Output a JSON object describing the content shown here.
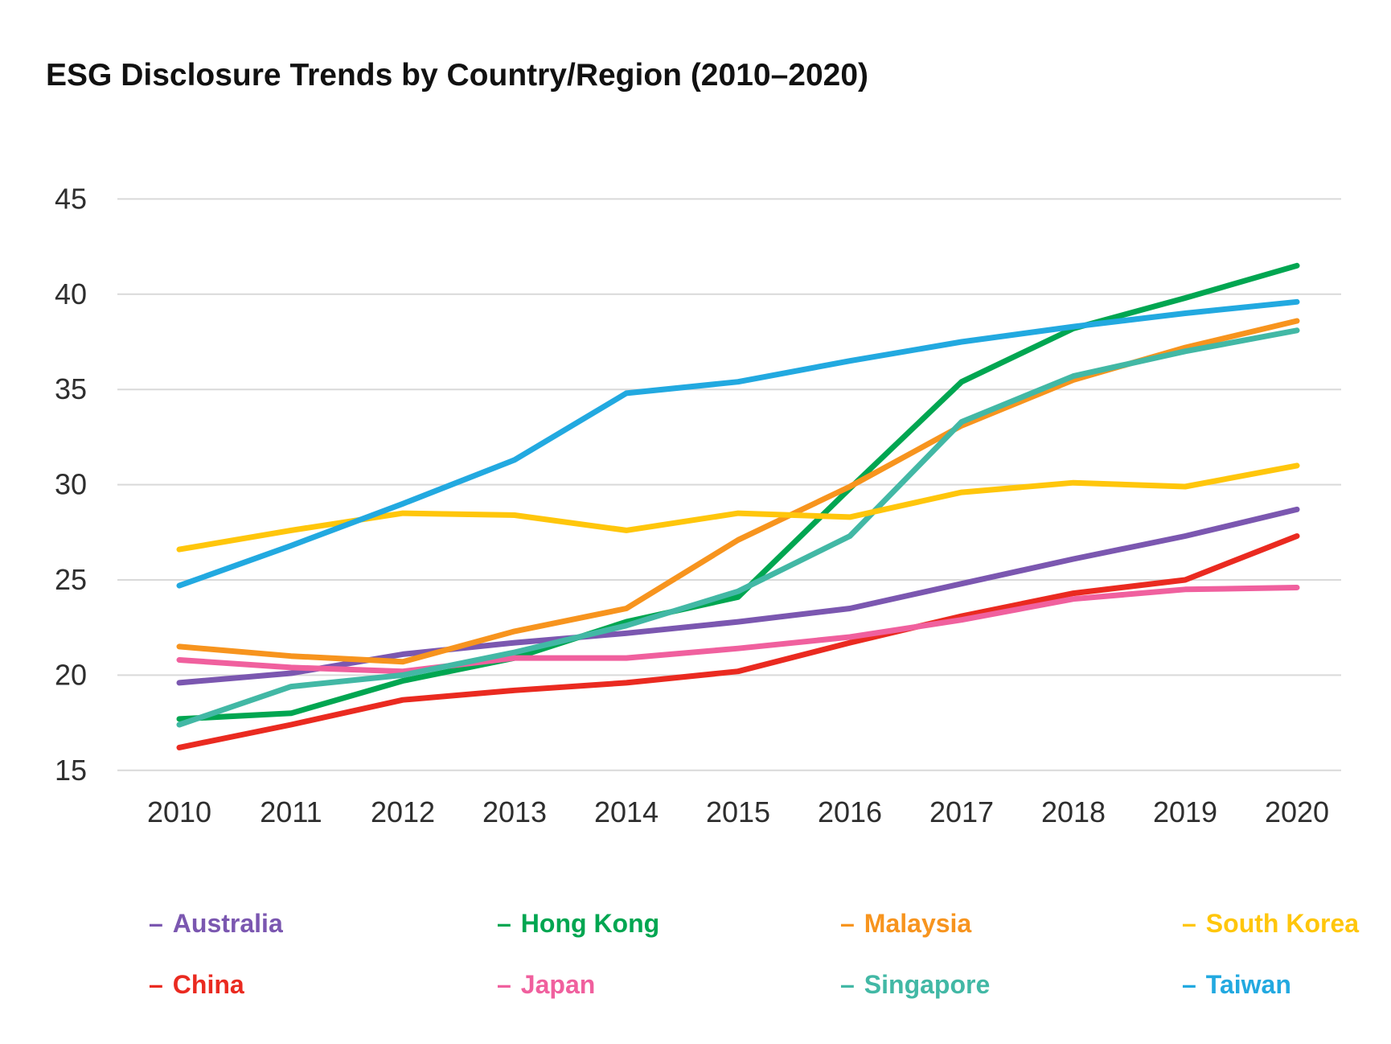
{
  "title": "ESG Disclosure Trends by Country/Region (2010–2020)",
  "colors": {
    "background": "#ffffff",
    "title_text": "#111111",
    "axis_text": "#2e2e2e",
    "grid": "#d9d9d9"
  },
  "chart_data": {
    "type": "line",
    "title": "ESG Disclosure Trends by Country/Region (2010–2020)",
    "x": [
      2010,
      2011,
      2012,
      2013,
      2014,
      2015,
      2016,
      2017,
      2018,
      2019,
      2020
    ],
    "xlabel": "",
    "ylabel": "",
    "ylim": [
      15,
      45
    ],
    "yticks": [
      15,
      20,
      25,
      30,
      35,
      40,
      45
    ],
    "grid": "horizontal",
    "legend_position": "bottom",
    "series": [
      {
        "name": "Australia",
        "color": "#7b57b0",
        "values": [
          19.6,
          20.1,
          21.1,
          21.7,
          22.2,
          22.8,
          23.5,
          24.8,
          26.1,
          27.3,
          28.7
        ]
      },
      {
        "name": "China",
        "color": "#ea2a20",
        "values": [
          16.2,
          17.4,
          18.7,
          19.2,
          19.6,
          20.2,
          21.7,
          23.1,
          24.3,
          25.0,
          27.3
        ]
      },
      {
        "name": "Hong Kong",
        "color": "#00a651",
        "values": [
          17.7,
          18.0,
          19.7,
          20.9,
          22.8,
          24.1,
          29.8,
          35.4,
          38.2,
          39.8,
          41.5
        ]
      },
      {
        "name": "Japan",
        "color": "#f0609e",
        "values": [
          20.8,
          20.4,
          20.2,
          20.9,
          20.9,
          21.4,
          22.0,
          22.9,
          24.0,
          24.5,
          24.6
        ]
      },
      {
        "name": "Malaysia",
        "color": "#f7941e",
        "values": [
          21.5,
          21.0,
          20.7,
          22.3,
          23.5,
          27.1,
          29.9,
          33.1,
          35.5,
          37.2,
          38.6
        ]
      },
      {
        "name": "Singapore",
        "color": "#42b8a5",
        "values": [
          17.4,
          19.4,
          20.0,
          21.2,
          22.6,
          24.4,
          27.3,
          33.3,
          35.7,
          37.0,
          38.1
        ]
      },
      {
        "name": "South Korea",
        "color": "#ffc60b",
        "values": [
          26.6,
          27.6,
          28.5,
          28.4,
          27.6,
          28.5,
          28.3,
          29.6,
          30.1,
          29.9,
          31.0
        ]
      },
      {
        "name": "Taiwan",
        "color": "#22a9e0",
        "values": [
          24.7,
          26.8,
          29.0,
          31.3,
          34.8,
          35.4,
          36.5,
          37.5,
          38.3,
          39.0,
          39.6
        ]
      }
    ]
  },
  "legend": {
    "rows": [
      [
        "Australia",
        "Hong Kong",
        "Malaysia",
        "South Korea"
      ],
      [
        "China",
        "Japan",
        "Singapore",
        "Taiwan"
      ]
    ]
  }
}
